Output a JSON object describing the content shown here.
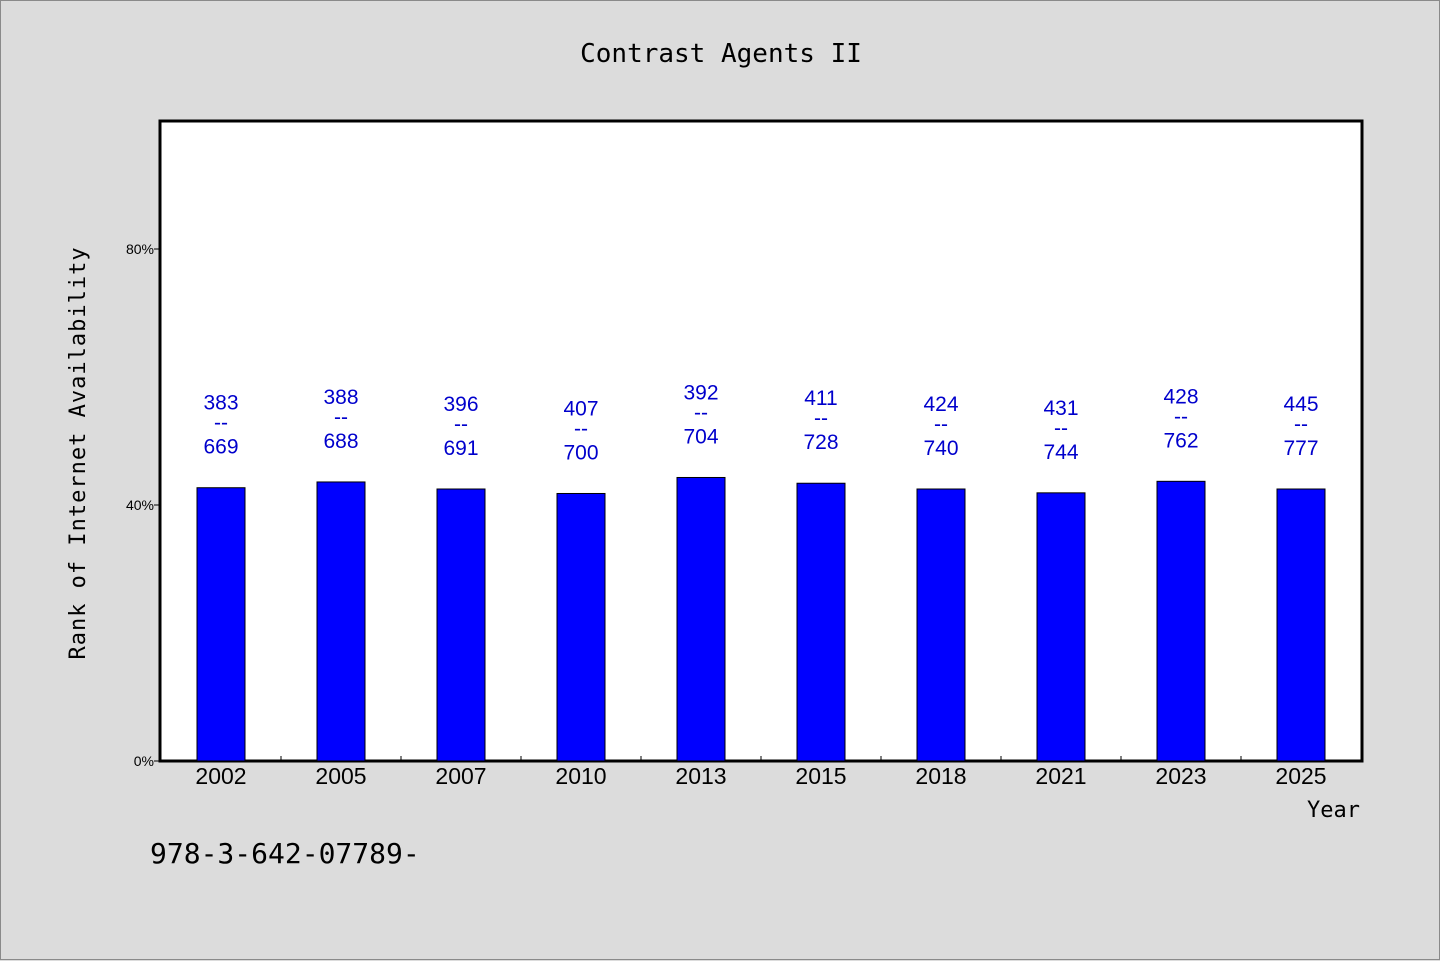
{
  "chart_data": {
    "type": "bar",
    "title": "Contrast Agents II",
    "xlabel": "Year",
    "ylabel": "Rank of Internet Availability",
    "footnote": "978-3-642-07789-",
    "categories": [
      "2002",
      "2005",
      "2007",
      "2010",
      "2013",
      "2015",
      "2018",
      "2021",
      "2023",
      "2025"
    ],
    "values": [
      42.7,
      43.6,
      42.5,
      41.8,
      44.3,
      43.4,
      42.5,
      41.9,
      43.7,
      42.5
    ],
    "label_top": [
      "383",
      "388",
      "396",
      "407",
      "392",
      "411",
      "424",
      "431",
      "428",
      "445"
    ],
    "label_sep": "--",
    "label_bottom": [
      "669",
      "688",
      "691",
      "700",
      "704",
      "728",
      "740",
      "744",
      "762",
      "777"
    ],
    "ylim": [
      0,
      100
    ],
    "yticks": [
      0,
      40,
      80
    ],
    "ytick_labels": [
      "0%",
      "40%",
      "80%"
    ],
    "bar_color": "#0000ff",
    "label_color": "#0000cc",
    "grid": false
  }
}
